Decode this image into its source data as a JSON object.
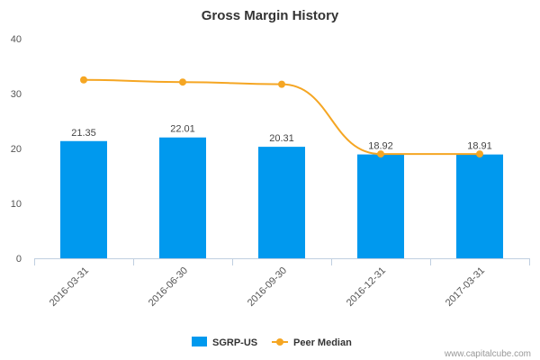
{
  "chart_data": {
    "type": "bar",
    "title": "Gross Margin History",
    "categories": [
      "2016-03-31",
      "2016-06-30",
      "2016-09-30",
      "2016-12-31",
      "2017-03-31"
    ],
    "series": [
      {
        "name": "SGRP-US",
        "type": "bar",
        "color": "#0099ee",
        "values": [
          21.35,
          22.01,
          20.31,
          18.92,
          18.91
        ]
      },
      {
        "name": "Peer Median",
        "type": "line",
        "color": "#f5a623",
        "values": [
          32.5,
          32.1,
          31.7,
          19.0,
          19.0
        ]
      }
    ],
    "data_labels": [
      "21.35",
      "22.01",
      "20.31",
      "18.92",
      "18.91"
    ],
    "y_ticks": [
      "0",
      "10",
      "20",
      "30",
      "40"
    ],
    "ylim": [
      0,
      40
    ],
    "grid": false,
    "legend_position": "bottom-center"
  },
  "credit": "www.capitalcube.com"
}
